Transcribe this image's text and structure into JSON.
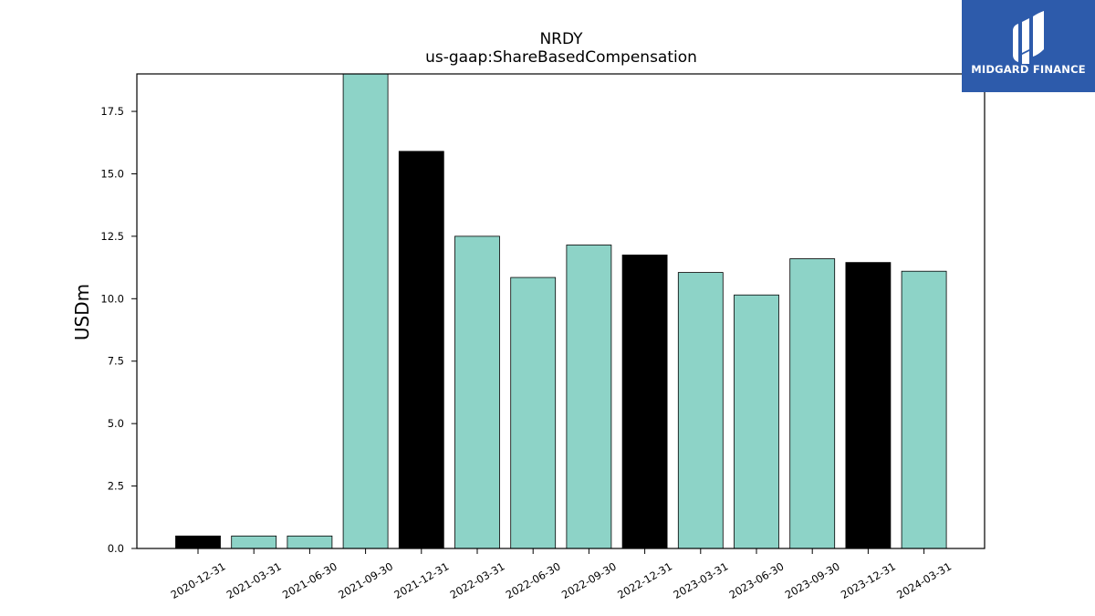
{
  "logo": {
    "text": "MIDGARD FINANCE",
    "icon": "midgard-logo-mark",
    "background": "#2d5bab"
  },
  "chart_data": {
    "type": "bar",
    "title": "NRDY",
    "subtitle": "us-gaap:ShareBasedCompensation",
    "xlabel": "",
    "ylabel": "USDm",
    "ylim": [
      0,
      19.0
    ],
    "yticks": [
      "0.0",
      "2.5",
      "5.0",
      "7.5",
      "10.0",
      "12.5",
      "15.0",
      "17.5"
    ],
    "categories": [
      "2020-12-31",
      "2021-03-31",
      "2021-06-30",
      "2021-09-30",
      "2021-12-31",
      "2022-03-31",
      "2022-06-30",
      "2022-09-30",
      "2022-12-31",
      "2023-03-31",
      "2023-06-30",
      "2023-09-30",
      "2023-12-31",
      "2024-03-31"
    ],
    "values": [
      0.5,
      0.5,
      0.5,
      19.0,
      15.9,
      12.5,
      10.85,
      12.15,
      11.75,
      11.05,
      10.15,
      11.6,
      11.45,
      11.1
    ],
    "bar_colors": [
      "#000000",
      "#8dd3c7",
      "#8dd3c7",
      "#8dd3c7",
      "#000000",
      "#8dd3c7",
      "#8dd3c7",
      "#8dd3c7",
      "#000000",
      "#8dd3c7",
      "#8dd3c7",
      "#8dd3c7",
      "#000000",
      "#8dd3c7"
    ],
    "grid": false,
    "legend": "none"
  }
}
